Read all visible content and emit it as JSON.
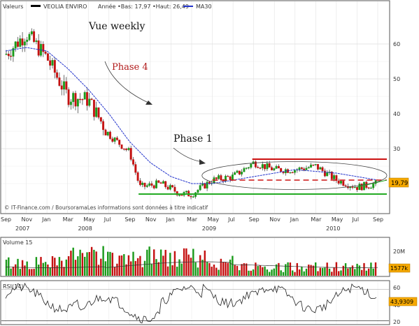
{
  "header": {
    "label_valeurs": "Valeurs",
    "symbol_name": "VEOLIA ENVIRO",
    "stats": "Année •Bas: 17,97 •Haut: 26,49",
    "ma_label": "MA30"
  },
  "annotations": {
    "title": "Vue weekly",
    "phase4": "Phase 4",
    "phase1": "Phase 1",
    "credit": "© IT-Finance.com / BoursoramaLes informations sont données à titre indicatif"
  },
  "price_panel": {
    "y_ticks": [
      "60",
      "50",
      "40",
      "30"
    ],
    "price_tag": "19,79",
    "x_months": [
      "Sep",
      "Nov",
      "Jan",
      "Mar",
      "May",
      "Jul",
      "Sep",
      "Nov",
      "Jan",
      "Mar",
      "May",
      "Jul",
      "Sep",
      "Nov",
      "Jan",
      "Mar",
      "May",
      "Jul",
      "Sep"
    ],
    "x_years": [
      "2007",
      "2008",
      "2009",
      "2010"
    ]
  },
  "volume_panel": {
    "label": "Volume 15",
    "y_tick": "20M",
    "value_tag": "1577k"
  },
  "rsi_panel": {
    "label": "RSI(14)",
    "y_ticks": [
      "60",
      "40",
      "20"
    ],
    "value_tag": "43,9309"
  },
  "colors": {
    "up": "#1a9a1a",
    "down": "#c41010",
    "ma": "#2233cc",
    "resistance": "#cc1111",
    "support": "#22aa22",
    "tag_bg": "#f5a800"
  },
  "chart_data": [
    {
      "type": "candlestick",
      "title": "",
      "x_range": [
        "2007-09",
        "2010-09"
      ],
      "ylim": [
        14,
        70
      ],
      "series": [
        {
          "name": "VEOLIA ENVIRO",
          "description_points": [
            [
              "2007-09",
              57
            ],
            [
              "2007-11",
              63
            ],
            [
              "2008-01",
              56
            ],
            [
              "2008-03",
              45
            ],
            [
              "2008-05",
              44
            ],
            [
              "2008-07",
              34
            ],
            [
              "2008-09",
              29
            ],
            [
              "2008-10",
              19
            ],
            [
              "2008-12",
              20
            ],
            [
              "2009-02",
              17
            ],
            [
              "2009-03",
              17
            ],
            [
              "2009-05",
              21
            ],
            [
              "2009-07",
              22
            ],
            [
              "2009-09",
              26
            ],
            [
              "2009-11",
              24
            ],
            [
              "2010-01",
              24
            ],
            [
              "2010-03",
              25
            ],
            [
              "2010-05",
              21
            ],
            [
              "2010-07",
              19
            ],
            [
              "2010-09",
              20
            ]
          ]
        },
        {
          "name": "MA30",
          "description_points": [
            [
              "2007-09",
              58
            ],
            [
              "2007-11",
              59
            ],
            [
              "2008-01",
              58
            ],
            [
              "2008-03",
              53
            ],
            [
              "2008-05",
              47
            ],
            [
              "2008-07",
              40
            ],
            [
              "2008-09",
              32
            ],
            [
              "2008-11",
              26
            ],
            [
              "2009-01",
              22
            ],
            [
              "2009-03",
              20
            ],
            [
              "2009-05",
              20
            ],
            [
              "2009-07",
              21
            ],
            [
              "2009-09",
              22
            ],
            [
              "2009-11",
              23
            ],
            [
              "2010-01",
              24
            ],
            [
              "2010-03",
              23.5
            ],
            [
              "2010-05",
              23
            ],
            [
              "2010-07",
              22
            ],
            [
              "2010-09",
              21
            ]
          ]
        }
      ],
      "last_value": 19.79,
      "resistance_level": 27,
      "support_level": 17,
      "mid_level": 21
    },
    {
      "type": "bar",
      "title": "",
      "series": [
        {
          "name": "Volume 15"
        }
      ],
      "ylim": [
        0,
        30000000
      ],
      "last_value": "1577k"
    },
    {
      "type": "line",
      "title": "",
      "series": [
        {
          "name": "RSI(14)"
        }
      ],
      "ylim": [
        15,
        70
      ],
      "last_value": 43.9309
    }
  ]
}
